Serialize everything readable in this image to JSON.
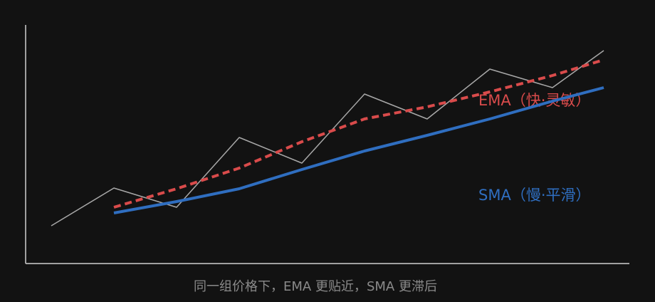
{
  "chart_data": {
    "type": "line",
    "x": [
      36,
      124,
      212,
      300,
      388,
      476,
      564,
      652,
      740,
      812
    ],
    "xlim": [
      0,
      848
    ],
    "ylim": [
      0,
      335
    ],
    "series": [
      {
        "color": "#a8a8a8",
        "values": [
          53,
          106,
          79,
          177,
          141,
          238,
          203,
          273,
          247,
          299
        ]
      },
      {
        "name": "EMA（快·灵敏）",
        "color": "#d94b4b",
        "style": "dashed",
        "values": [
          null,
          79,
          105,
          134,
          171,
          203,
          220,
          241,
          264,
          286
        ]
      },
      {
        "name": "SMA（慢·平滑）",
        "color": "#2f6ec0",
        "style": "solid",
        "values": [
          null,
          71,
          87,
          105,
          132,
          158,
          180,
          203,
          228,
          247
        ]
      }
    ],
    "caption": "同一组价格下，EMA 更贴近，SMA 更滞后"
  }
}
